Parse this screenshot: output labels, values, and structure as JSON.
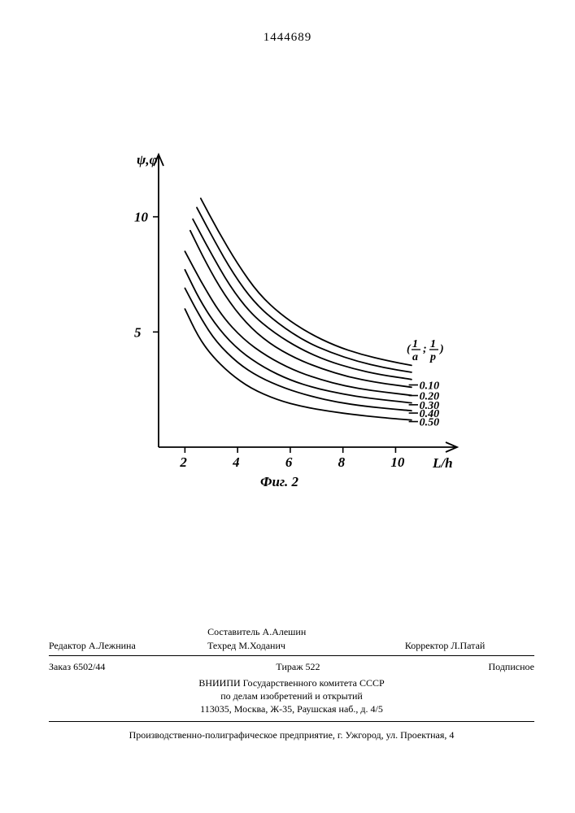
{
  "doc_number": "1444689",
  "chart": {
    "type": "line-family",
    "y_axis_label": "ψ,φ",
    "x_axis_label": "L/h",
    "figure_label": "Фиг. 2",
    "param_label": "(1/a ; 1/p)",
    "background_color": "#ffffff",
    "axis_color": "#000000",
    "curve_color": "#000000",
    "curve_width": 1.8,
    "title_fontsize": 17,
    "tick_fontsize": 17,
    "xlim": [
      1,
      11.5
    ],
    "ylim": [
      0,
      12
    ],
    "xticks": [
      2,
      4,
      6,
      8,
      10
    ],
    "yticks": [
      5,
      10
    ],
    "curves": [
      {
        "param": "0.50",
        "points": [
          [
            2.0,
            6.0
          ],
          [
            2.5,
            4.8
          ],
          [
            3.0,
            4.0
          ],
          [
            3.7,
            3.2
          ],
          [
            4.5,
            2.55
          ],
          [
            5.5,
            2.05
          ],
          [
            6.5,
            1.75
          ],
          [
            7.5,
            1.55
          ],
          [
            8.5,
            1.4
          ],
          [
            9.8,
            1.25
          ],
          [
            10.6,
            1.18
          ]
        ]
      },
      {
        "param": "0.40",
        "points": [
          [
            2.0,
            6.9
          ],
          [
            2.6,
            5.6
          ],
          [
            3.2,
            4.55
          ],
          [
            4.0,
            3.65
          ],
          [
            4.8,
            3.05
          ],
          [
            5.8,
            2.55
          ],
          [
            6.8,
            2.2
          ],
          [
            7.8,
            1.95
          ],
          [
            8.8,
            1.78
          ],
          [
            9.9,
            1.65
          ],
          [
            10.6,
            1.58
          ]
        ]
      },
      {
        "param": "0.30",
        "points": [
          [
            2.0,
            7.7
          ],
          [
            2.6,
            6.3
          ],
          [
            3.3,
            5.1
          ],
          [
            4.1,
            4.15
          ],
          [
            5.0,
            3.45
          ],
          [
            6.0,
            2.9
          ],
          [
            7.0,
            2.55
          ],
          [
            8.0,
            2.3
          ],
          [
            9.0,
            2.12
          ],
          [
            10.0,
            2.0
          ],
          [
            10.6,
            1.92
          ]
        ]
      },
      {
        "param": "0.20",
        "points": [
          [
            2.0,
            8.5
          ],
          [
            2.7,
            7.0
          ],
          [
            3.4,
            5.7
          ],
          [
            4.2,
            4.7
          ],
          [
            5.1,
            3.95
          ],
          [
            6.1,
            3.35
          ],
          [
            7.1,
            2.95
          ],
          [
            8.1,
            2.65
          ],
          [
            9.1,
            2.45
          ],
          [
            10.1,
            2.32
          ],
          [
            10.6,
            2.25
          ]
        ]
      },
      {
        "param": "0.10",
        "points": [
          [
            2.2,
            9.4
          ],
          [
            2.8,
            8.0
          ],
          [
            3.5,
            6.6
          ],
          [
            4.3,
            5.4
          ],
          [
            5.2,
            4.5
          ],
          [
            6.2,
            3.85
          ],
          [
            7.2,
            3.4
          ],
          [
            8.2,
            3.05
          ],
          [
            9.2,
            2.82
          ],
          [
            10.1,
            2.68
          ],
          [
            10.6,
            2.6
          ]
        ]
      },
      {
        "param": "",
        "points": [
          [
            2.3,
            9.9
          ],
          [
            2.95,
            8.5
          ],
          [
            3.7,
            7.0
          ],
          [
            4.5,
            5.8
          ],
          [
            5.4,
            4.95
          ],
          [
            6.4,
            4.25
          ],
          [
            7.4,
            3.75
          ],
          [
            8.4,
            3.4
          ],
          [
            9.4,
            3.15
          ],
          [
            10.6,
            2.94
          ]
        ]
      },
      {
        "param": "",
        "points": [
          [
            2.45,
            10.4
          ],
          [
            3.1,
            9.0
          ],
          [
            3.85,
            7.5
          ],
          [
            4.65,
            6.25
          ],
          [
            5.55,
            5.35
          ],
          [
            6.55,
            4.6
          ],
          [
            7.55,
            4.1
          ],
          [
            8.55,
            3.72
          ],
          [
            9.55,
            3.45
          ],
          [
            10.6,
            3.25
          ]
        ]
      },
      {
        "param": "",
        "points": [
          [
            2.6,
            10.8
          ],
          [
            3.25,
            9.4
          ],
          [
            4.0,
            7.95
          ],
          [
            4.8,
            6.65
          ],
          [
            5.7,
            5.7
          ],
          [
            6.7,
            4.95
          ],
          [
            7.7,
            4.4
          ],
          [
            8.7,
            4.02
          ],
          [
            9.7,
            3.75
          ],
          [
            10.6,
            3.55
          ]
        ]
      }
    ],
    "label_positions": {
      "0.10": [
        10.9,
        2.7
      ],
      "0.20": [
        10.9,
        2.24
      ],
      "0.30": [
        10.9,
        1.84
      ],
      "0.40": [
        10.9,
        1.48
      ],
      "0.50": [
        10.9,
        1.11
      ]
    }
  },
  "credits": {
    "editor_label": "Редактор",
    "editor": "А.Лежнина",
    "compiler_label": "Составитель",
    "compiler": "А.Алешин",
    "techred_label": "Техред",
    "techred": "М.Ходанич",
    "corrector_label": "Корректор",
    "corrector": "Л.Патай",
    "order_label": "Заказ",
    "order": "6502/44",
    "tirazh_label": "Тираж",
    "tirazh": "522",
    "subscription": "Подписное",
    "org_line1": "ВНИИПИ Государственного комитета СССР",
    "org_line2": "по делам изобретений и открытий",
    "org_line3": "113035, Москва, Ж-35, Раушская наб., д. 4/5",
    "printer": "Производственно-полиграфическое предприятие, г. Ужгород, ул. Проектная, 4"
  }
}
